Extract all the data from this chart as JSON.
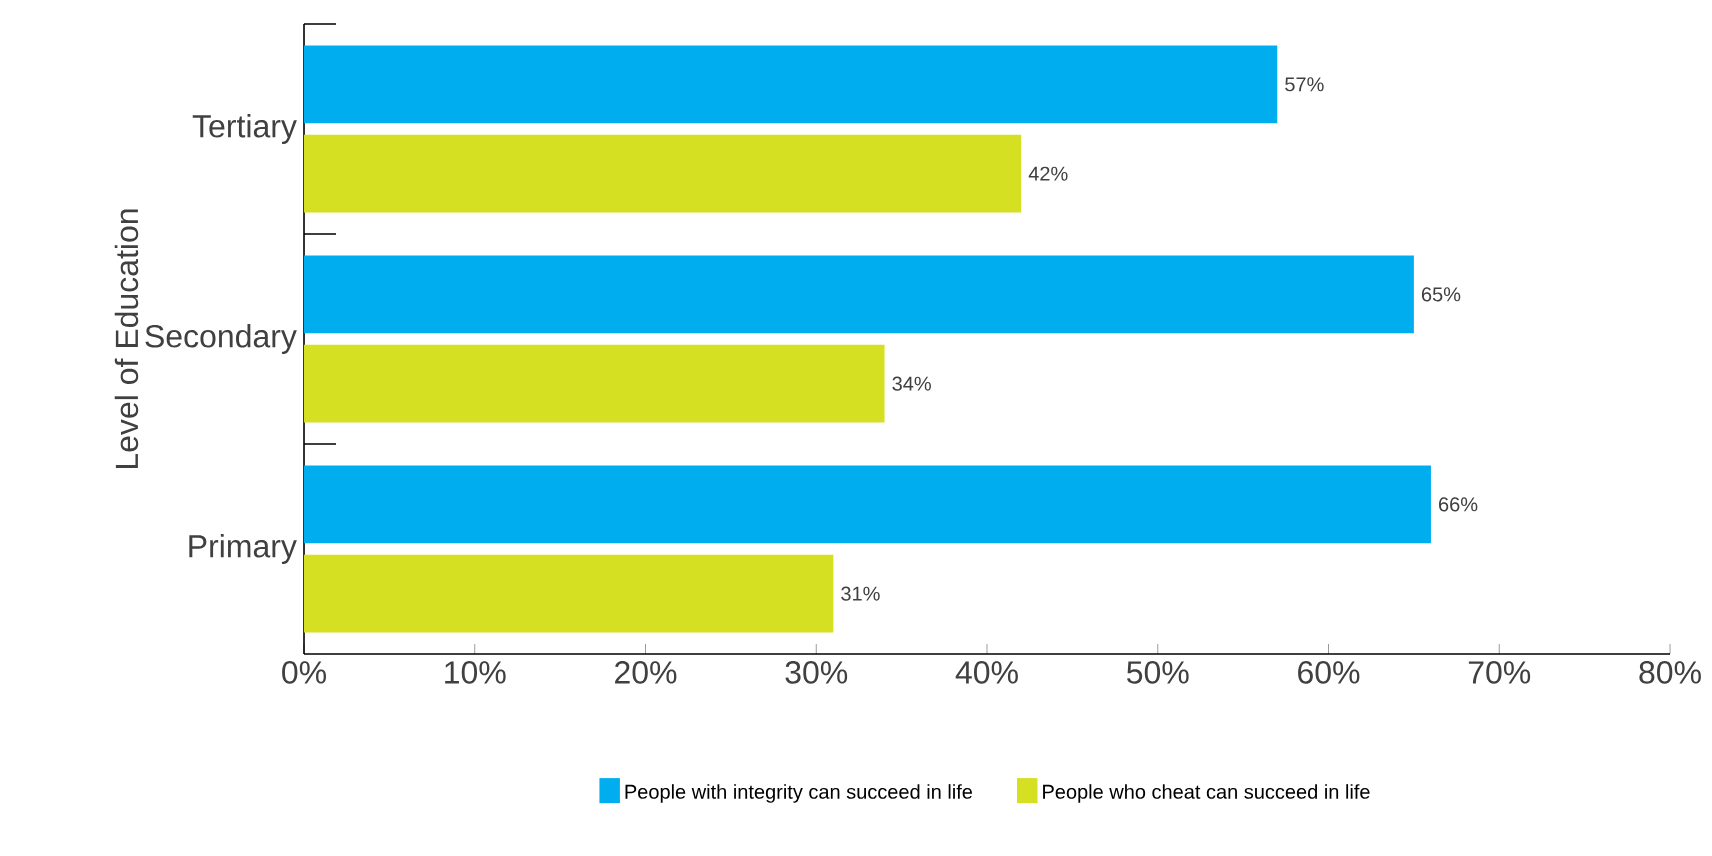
{
  "chart_data": {
    "type": "bar",
    "orientation": "horizontal",
    "ylabel": "Level of Education",
    "categories": [
      "Tertiary",
      "Secondary",
      "Primary"
    ],
    "series": [
      {
        "name": "People with integrity can succeed in life",
        "color": "#00adef",
        "values": [
          57,
          65,
          66
        ],
        "value_labels": [
          "57%",
          "65%",
          "66%"
        ]
      },
      {
        "name": "People who cheat can succeed in life",
        "color": "#d4e021",
        "values": [
          42,
          34,
          31
        ],
        "value_labels": [
          "42%",
          "34%",
          "31%"
        ]
      }
    ],
    "xlim": [
      0,
      80
    ],
    "xticks": [
      {
        "value": 0,
        "label": "0%"
      },
      {
        "value": 10,
        "label": "10%"
      },
      {
        "value": 20,
        "label": "20%"
      },
      {
        "value": 30,
        "label": "30%"
      },
      {
        "value": 40,
        "label": "40%"
      },
      {
        "value": 50,
        "label": "50%"
      },
      {
        "value": 60,
        "label": "60%"
      },
      {
        "value": 70,
        "label": "70%"
      },
      {
        "value": 80,
        "label": "80%"
      }
    ],
    "grid": false,
    "legend": "bottom"
  }
}
